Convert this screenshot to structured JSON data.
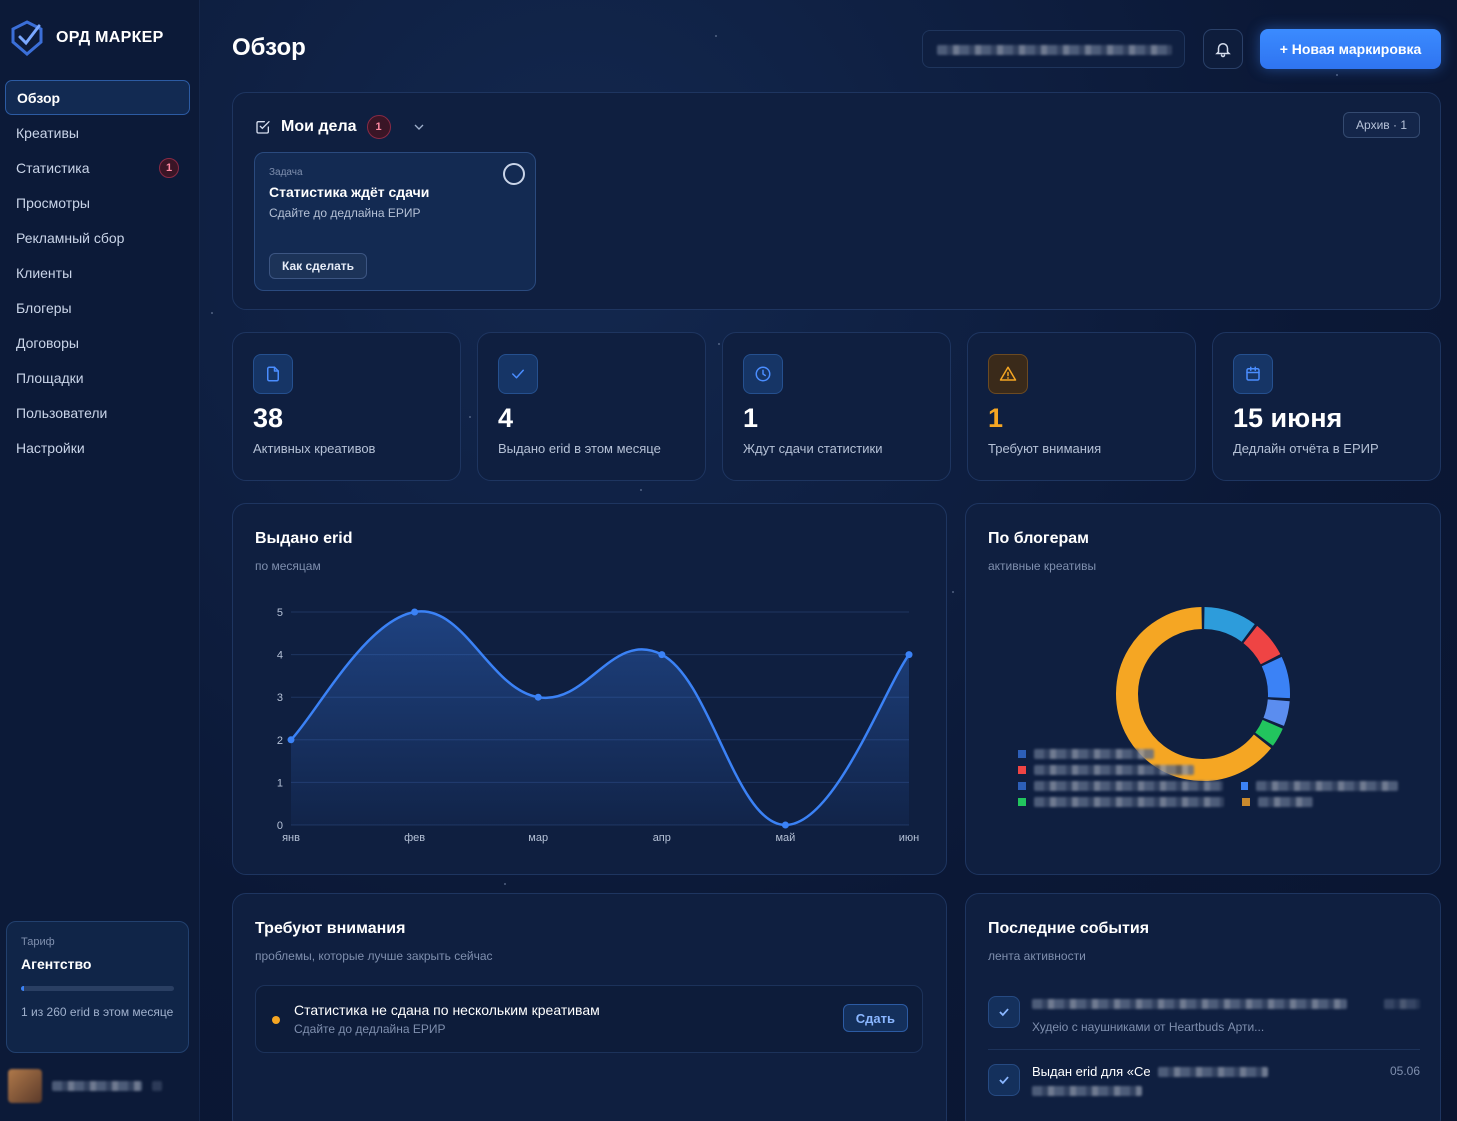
{
  "brand": {
    "name": "ОРД МАРКЕР",
    "logo_icon": "shield-logo-icon"
  },
  "sidebar": {
    "items": [
      {
        "label": "Обзор",
        "active": true
      },
      {
        "label": "Креативы"
      },
      {
        "label": "Статистика",
        "badge": "1"
      },
      {
        "label": "Просмотры"
      },
      {
        "label": "Рекламный сбор"
      },
      {
        "label": "Клиенты"
      },
      {
        "label": "Блогеры"
      },
      {
        "label": "Договоры"
      },
      {
        "label": "Площадки"
      },
      {
        "label": "Пользователи"
      },
      {
        "label": "Настройки"
      }
    ],
    "tariff": {
      "label": "Тариф",
      "name": "Агентство",
      "usage_text": "1 из 260 erid в этом месяце",
      "usage_fraction": 0.004
    }
  },
  "header": {
    "title": "Обзор",
    "bell_icon": "bell-icon",
    "new_button": "+ Новая маркировка"
  },
  "tasks": {
    "title": "Мои дела",
    "count": "1",
    "archive_label": "Архив · 1",
    "card": {
      "kind": "Задача",
      "title": "Статистика ждёт сдачи",
      "subtitle": "Сдайте до дедлайна ЕРИР",
      "button": "Как сделать"
    }
  },
  "stats": [
    {
      "icon": "file-icon",
      "value": "38",
      "label": "Активных креативов",
      "color": "#4a8dff"
    },
    {
      "icon": "check-icon",
      "value": "4",
      "label": "Выдано erid в этом месяце",
      "color": "#4a8dff"
    },
    {
      "icon": "clock-icon",
      "value": "1",
      "label": "Ждут сдачи статистики",
      "color": "#4a8dff"
    },
    {
      "icon": "warning-icon",
      "value": "1",
      "label": "Требуют внимания",
      "color": "#f5a623"
    },
    {
      "icon": "calendar-icon",
      "value": "15 июня",
      "label": "Дедлайн отчёта в ЕРИР",
      "color": "#4a8dff"
    }
  ],
  "erid_chart": {
    "title": "Выдано erid",
    "subtitle": "по месяцам"
  },
  "chart_data": {
    "type": "area",
    "categories": [
      "янв",
      "фев",
      "мар",
      "апр",
      "май",
      "июн"
    ],
    "values": [
      2,
      5,
      3,
      4,
      0,
      4
    ],
    "ylim": [
      0,
      5
    ],
    "yticks": [
      "0",
      "1",
      "2",
      "3",
      "4",
      "5"
    ],
    "grid": true,
    "color": "#3b82f6"
  },
  "bloggers": {
    "title": "По блогерам",
    "subtitle": "активные креативы",
    "donut": [
      {
        "value": 62,
        "color": "#f5a623"
      },
      {
        "value": 10,
        "color": "#2d9cdb"
      },
      {
        "value": 7,
        "color": "#ef4444"
      },
      {
        "value": 8,
        "color": "#3b82f6"
      },
      {
        "value": 5,
        "color": "#5b8def"
      },
      {
        "value": 4,
        "color": "#22c55e"
      }
    ]
  },
  "attention": {
    "title": "Требуют внимания",
    "subtitle": "проблемы, которые лучше закрыть сейчас",
    "item": {
      "title": "Статистика не сдана по нескольким креативам",
      "subtitle": "Сдайте до дедлайна ЕРИР",
      "button": "Сдать"
    }
  },
  "events": {
    "title": "Последние события",
    "subtitle": "лента активности",
    "items": [
      {
        "title": "",
        "subtitle": "Худеiо с наушниками от Heartbuds Арти...",
        "date": ""
      },
      {
        "title": "Выдан erid для «Се",
        "subtitle": "",
        "date": "05.06"
      }
    ]
  }
}
